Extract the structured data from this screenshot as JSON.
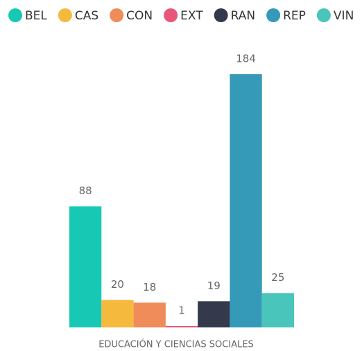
{
  "chart_data": {
    "type": "bar",
    "categories": [
      "EDUCACIÓN Y CIENCIAS SOCIALES"
    ],
    "series": [
      {
        "name": "BEL",
        "color": "#17c9b5",
        "values": [
          88
        ]
      },
      {
        "name": "CAS",
        "color": "#f5b93e",
        "values": [
          20
        ]
      },
      {
        "name": "CON",
        "color": "#f08c5a",
        "values": [
          18
        ]
      },
      {
        "name": "EXT",
        "color": "#e8567a",
        "values": [
          1
        ]
      },
      {
        "name": "RAN",
        "color": "#343a4c",
        "values": [
          19
        ]
      },
      {
        "name": "REP",
        "color": "#3599b8",
        "values": [
          184
        ]
      },
      {
        "name": "VIN",
        "color": "#4ac5bb",
        "values": [
          25
        ]
      }
    ],
    "ylim": [
      0,
      184
    ],
    "legend": "top"
  }
}
